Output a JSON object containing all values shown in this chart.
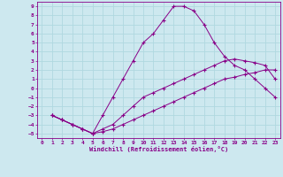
{
  "xlabel": "Windchill (Refroidissement éolien,°C)",
  "background_color": "#cde8ef",
  "grid_color": "#b0d8e0",
  "line_color": "#880088",
  "xlim": [
    -0.5,
    23.5
  ],
  "ylim": [
    -5.5,
    9.5
  ],
  "xticks": [
    0,
    1,
    2,
    3,
    4,
    5,
    6,
    7,
    8,
    9,
    10,
    11,
    12,
    13,
    14,
    15,
    16,
    17,
    18,
    19,
    20,
    21,
    22,
    23
  ],
  "yticks": [
    -5,
    -4,
    -3,
    -2,
    -1,
    0,
    1,
    2,
    3,
    4,
    5,
    6,
    7,
    8,
    9
  ],
  "curve1_x": [
    1,
    2,
    3,
    4,
    5,
    6,
    7,
    8,
    9,
    10,
    11,
    12,
    13,
    14,
    15,
    16,
    17,
    18,
    19,
    20,
    21,
    22,
    23
  ],
  "curve1_y": [
    -3,
    -3.5,
    -4,
    -4.5,
    -5,
    -3,
    -1,
    1,
    3,
    5,
    6,
    7.5,
    9,
    9,
    8.5,
    7,
    5,
    3.5,
    2.5,
    2,
    1,
    0,
    -1
  ],
  "curve2_x": [
    1,
    2,
    3,
    4,
    5,
    6,
    7,
    8,
    9,
    10,
    11,
    12,
    13,
    14,
    15,
    16,
    17,
    18,
    19,
    20,
    21,
    22,
    23
  ],
  "curve2_y": [
    -3,
    -3.5,
    -4,
    -4.5,
    -5,
    -4.8,
    -4.5,
    -4,
    -3.5,
    -3,
    -2.5,
    -2,
    -1.5,
    -1,
    -0.5,
    0,
    0.5,
    1,
    1.2,
    1.5,
    1.7,
    2,
    2
  ],
  "curve3_x": [
    1,
    2,
    3,
    4,
    5,
    6,
    7,
    8,
    9,
    10,
    11,
    12,
    13,
    14,
    15,
    16,
    17,
    18,
    19,
    20,
    21,
    22,
    23
  ],
  "curve3_y": [
    -3,
    -3.5,
    -4,
    -4.5,
    -5,
    -4.5,
    -4,
    -3,
    -2,
    -1,
    -0.5,
    0,
    0.5,
    1,
    1.5,
    2,
    2.5,
    3,
    3.2,
    3,
    2.8,
    2.5,
    1
  ]
}
